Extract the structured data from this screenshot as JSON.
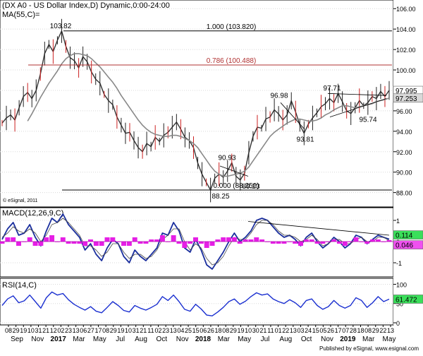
{
  "chart_data": [
    {
      "type": "line",
      "panel": "price",
      "title": "(DX A0 - US Dollar Index,D) Dynamic,0:00-24:00",
      "indicator_label": "MA(55,C)=",
      "copyright": "© eSignal, 2011",
      "ylim": [
        86.8,
        106.5
      ],
      "y_ticks": [
        "88.00",
        "90.00",
        "92.00",
        "94.00",
        "96.00",
        "98.00",
        "100.00",
        "102.00",
        "104.00",
        "106.00"
      ],
      "y_tick_values": [
        88,
        90,
        92,
        94,
        96,
        98,
        100,
        102,
        104,
        106
      ],
      "current_value_badges": [
        {
          "text": "97.995",
          "value": 97.995,
          "color": "#ffffff"
        },
        {
          "text": "97.253",
          "value": 97.253,
          "color": "#d9d9d9"
        }
      ],
      "fib_levels": [
        {
          "label": "1.000 (103.820)",
          "value": 103.82,
          "color": "#000000"
        },
        {
          "label": "0.786 (100.488)",
          "value": 100.488,
          "color": "#b03030"
        },
        {
          "label": "0.000 (88.250)",
          "value": 88.25,
          "color": "#000000"
        }
      ],
      "annotations": [
        {
          "text": "103.82",
          "value": 103.82
        },
        {
          "text": "90.93",
          "value": 90.93
        },
        {
          "text": "89.23",
          "value": 89.23
        },
        {
          "text": "88.25",
          "value": 88.25
        },
        {
          "text": "96.98",
          "value": 96.98
        },
        {
          "text": "93.81",
          "value": 93.81
        },
        {
          "text": "97.71",
          "value": 97.71
        },
        {
          "text": "95.74",
          "value": 95.74
        }
      ],
      "series": [
        {
          "kind": "price",
          "color": "#333333",
          "values": [
            94.8,
            95.3,
            95.6,
            95.1,
            96.3,
            97.4,
            97.8,
            97.2,
            98.0,
            99.6,
            101.6,
            102.5,
            101.8,
            102.9,
            103.82,
            102.3,
            101.2,
            100.9,
            100.2,
            101.3,
            100.8,
            99.8,
            99.1,
            98.7,
            97.6,
            97.0,
            96.6,
            95.4,
            94.6,
            93.8,
            93.9,
            93.1,
            92.4,
            92.0,
            92.8,
            92.5,
            93.4,
            93.0,
            93.6,
            93.9,
            94.4,
            94.9,
            94.2,
            93.4,
            93.1,
            92.4,
            90.9,
            89.8,
            89.0,
            88.25,
            89.4,
            89.8,
            89.5,
            90.1,
            90.93,
            89.6,
            89.23,
            89.9,
            91.9,
            93.5,
            94.4,
            94.3,
            95.2,
            95.4,
            96.1,
            95.7,
            95.1,
            95.6,
            96.98,
            95.9,
            94.6,
            93.81,
            94.7,
            95.3,
            95.8,
            96.4,
            96.7,
            97.2,
            96.8,
            97.71,
            96.9,
            96.0,
            95.74,
            96.3,
            97.0,
            96.5,
            96.8,
            97.4,
            97.2,
            97.9,
            97.4,
            97.995
          ]
        },
        {
          "kind": "ma",
          "name": "MA(55,C)",
          "color": "#888888",
          "values": [
            null,
            null,
            null,
            null,
            null,
            null,
            95.0,
            95.7,
            96.5,
            97.3,
            98.0,
            98.7,
            99.3,
            99.9,
            100.6,
            101.1,
            101.4,
            101.6,
            101.6,
            101.5,
            101.4,
            101.1,
            100.7,
            100.3,
            99.8,
            99.3,
            98.8,
            98.2,
            97.5,
            96.9,
            96.3,
            95.7,
            95.1,
            94.6,
            94.2,
            93.9,
            93.7,
            93.6,
            93.5,
            93.5,
            93.6,
            93.6,
            93.5,
            93.3,
            93.1,
            92.8,
            92.4,
            91.8,
            91.2,
            90.6,
            90.1,
            89.8,
            89.6,
            89.6,
            89.7,
            89.8,
            89.9,
            90.1,
            90.5,
            91.1,
            91.7,
            92.3,
            92.9,
            93.5,
            93.9,
            94.2,
            94.5,
            94.8,
            95.0,
            95.2,
            95.2,
            95.1,
            95.0,
            95.0,
            95.1,
            95.3,
            95.6,
            95.8,
            96.1,
            96.3,
            96.5,
            96.5,
            96.4,
            96.3,
            96.4,
            96.5,
            96.6,
            96.7,
            96.9,
            97.0,
            97.1,
            97.253
          ]
        }
      ]
    },
    {
      "type": "line",
      "panel": "macd",
      "title": "MACD(12,26,9,C)",
      "ylim": [
        -1.6,
        1.5
      ],
      "y_ticks": [
        "1",
        "0",
        "-1"
      ],
      "y_tick_values": [
        1,
        0,
        -1
      ],
      "current_value_badges": [
        {
          "text": "0.114",
          "value": 0.114,
          "color": "#3adf5a"
        },
        {
          "text": "0.046",
          "value": 0.046,
          "color": "#f050f0"
        }
      ],
      "series": [
        {
          "kind": "macd",
          "color": "#1b2f9e",
          "values": [
            0.1,
            0.6,
            0.9,
            0.3,
            0.4,
            0.8,
            0.2,
            -0.2,
            0.5,
            1.1,
            0.9,
            1.3,
            0.8,
            0.5,
            0.2,
            -0.4,
            -0.1,
            -0.6,
            -0.9,
            -0.3,
            0.1,
            -0.1,
            -0.7,
            -1.0,
            -0.4,
            -0.7,
            -0.9,
            -0.6,
            -0.3,
            0.4,
            0.3,
            0.9,
            0.5,
            -0.3,
            -0.5,
            0.1,
            -0.4,
            -1.1,
            -1.3,
            -0.9,
            -0.5,
            0.0,
            0.4,
            0.0,
            0.2,
            0.5,
            1.0,
            1.1,
            1.0,
            0.7,
            0.4,
            0.2,
            0.3,
            0.1,
            -0.2,
            0.2,
            0.4,
            0.0,
            -0.3,
            -0.1,
            0.2,
            0.0,
            -0.3,
            -0.1,
            0.3,
            0.2,
            -0.1,
            0.1,
            0.3,
            0.2,
            0.114
          ]
        },
        {
          "kind": "signal",
          "color": "#4a4a4a",
          "values": [
            0.2,
            0.4,
            0.7,
            0.5,
            0.4,
            0.6,
            0.4,
            0.0,
            0.3,
            0.8,
            0.9,
            1.1,
            0.9,
            0.6,
            0.3,
            -0.2,
            -0.2,
            -0.4,
            -0.7,
            -0.5,
            -0.1,
            -0.1,
            -0.5,
            -0.8,
            -0.6,
            -0.6,
            -0.8,
            -0.7,
            -0.4,
            0.1,
            0.3,
            0.6,
            0.6,
            0.0,
            -0.4,
            -0.1,
            -0.3,
            -0.8,
            -1.1,
            -1.0,
            -0.7,
            -0.2,
            0.2,
            0.1,
            0.1,
            0.4,
            0.8,
            1.0,
            1.0,
            0.8,
            0.5,
            0.3,
            0.3,
            0.2,
            0.0,
            0.1,
            0.3,
            0.1,
            -0.2,
            -0.1,
            0.1,
            0.1,
            -0.1,
            -0.1,
            0.1,
            0.2,
            0.0,
            0.0,
            0.2,
            0.2,
            0.046
          ]
        },
        {
          "kind": "histogram",
          "color": "#e51fe5",
          "values": [
            -0.1,
            0.2,
            0.2,
            -0.2,
            0.0,
            0.2,
            -0.2,
            -0.2,
            0.2,
            0.3,
            0.0,
            0.2,
            -0.1,
            -0.1,
            -0.1,
            -0.2,
            0.1,
            -0.2,
            -0.2,
            0.2,
            0.2,
            0.0,
            -0.2,
            -0.2,
            0.2,
            -0.1,
            -0.1,
            0.1,
            0.1,
            0.3,
            0.0,
            0.3,
            -0.1,
            -0.3,
            -0.1,
            0.2,
            -0.1,
            -0.3,
            -0.2,
            0.1,
            0.2,
            0.2,
            0.2,
            -0.1,
            0.1,
            0.1,
            0.2,
            0.1,
            0.0,
            -0.1,
            -0.1,
            -0.1,
            0.0,
            -0.1,
            -0.2,
            0.1,
            0.1,
            -0.1,
            -0.1,
            0.0,
            0.1,
            -0.1,
            -0.2,
            0.0,
            0.2,
            0.0,
            -0.1,
            0.1,
            0.1,
            0.0,
            0.068
          ]
        }
      ]
    },
    {
      "type": "line",
      "panel": "rsi",
      "title": "RSI(14,C)",
      "ylim": [
        0,
        110
      ],
      "y_ticks": [
        "100",
        "50",
        "0"
      ],
      "y_tick_values": [
        100,
        50,
        0
      ],
      "current_value_badges": [
        {
          "text": "61.472",
          "value": 61.472,
          "color": "#3adf5a"
        }
      ],
      "series": [
        {
          "kind": "rsi",
          "color": "#1a2fd0",
          "values": [
            45,
            62,
            70,
            52,
            57,
            72,
            55,
            38,
            65,
            80,
            72,
            76,
            60,
            48,
            40,
            33,
            42,
            30,
            26,
            40,
            55,
            45,
            32,
            28,
            45,
            38,
            33,
            40,
            48,
            68,
            58,
            72,
            55,
            35,
            30,
            48,
            36,
            20,
            18,
            28,
            40,
            55,
            62,
            48,
            56,
            68,
            78,
            72,
            75,
            62,
            55,
            50,
            60,
            52,
            40,
            58,
            62,
            45,
            35,
            42,
            58,
            45,
            38,
            45,
            65,
            58,
            40,
            52,
            68,
            55,
            61.472
          ]
        }
      ]
    }
  ],
  "x_axis": {
    "day_ticks": [
      "08",
      "29",
      "19",
      "10",
      "31",
      "21",
      "12",
      "02",
      "23",
      "13",
      "06",
      "27",
      "17",
      "08",
      "29",
      "19",
      "10",
      "31",
      "21",
      "11",
      "02",
      "23",
      "13",
      "04",
      "25",
      "15",
      "06",
      "26",
      "18",
      "08",
      "29",
      "19",
      "10",
      "30",
      "21",
      "11",
      "01",
      "22",
      "13",
      "03",
      "24",
      "15",
      "05",
      "26",
      "17",
      "07",
      "28",
      "18",
      "08",
      "29",
      "22",
      "13"
    ],
    "month_labels": [
      "Sep",
      "Nov",
      "2017",
      "Mar",
      "May",
      "Jul",
      "Aug",
      "Oct",
      "Nov",
      "2018",
      "Mar",
      "May",
      "Jul",
      "Aug",
      "Oct",
      "Nov",
      "2019",
      "Mar",
      "May"
    ],
    "footer_credit": "Published by eSignal, www.esignal.com"
  }
}
